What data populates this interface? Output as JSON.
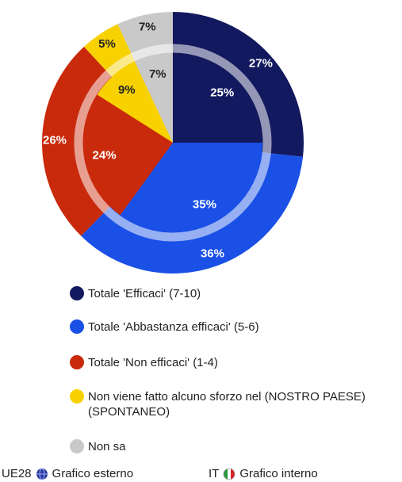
{
  "chart_data": {
    "type": "pie",
    "categories": [
      "Totale 'Efficaci' (7-10)",
      "Totale 'Abbastanza efficaci' (5-6)",
      "Totale 'Non efficaci' (1-4)",
      "Non viene fatto alcuno sforzo nel (NOSTRO PAESE) (SPONTANEO)",
      "Non sa"
    ],
    "colors": [
      "#13195e",
      "#1a50e6",
      "#c92a0c",
      "#f7d100",
      "#c9c9c9"
    ],
    "series": [
      {
        "name": "UE28",
        "ring": "Grafico esterno",
        "values": [
          27,
          36,
          26,
          5,
          7
        ],
        "value_labels": [
          "27%",
          "36%",
          "26%",
          "5%",
          "7%"
        ]
      },
      {
        "name": "IT",
        "ring": "Grafico interno",
        "values": [
          25,
          35,
          24,
          9,
          7
        ],
        "value_labels": [
          "25%",
          "35%",
          "24%",
          "9%",
          "7%"
        ]
      }
    ]
  }
}
